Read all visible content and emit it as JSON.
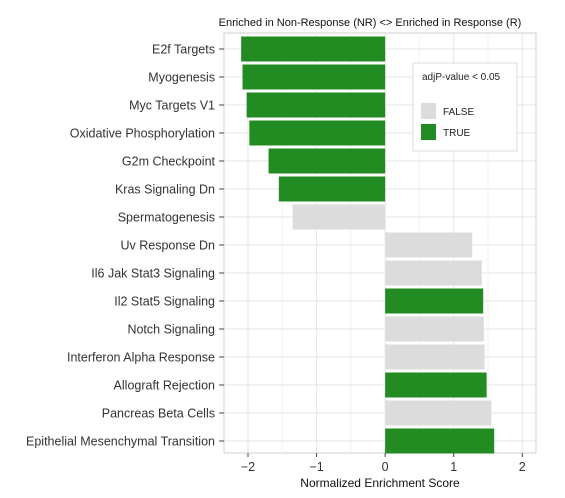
{
  "chart_data": {
    "type": "bar",
    "orientation": "horizontal",
    "title": "Enriched in Non-Response (NR) <> Enriched in Response (R)",
    "xlabel": "Normalized Enrichment Score",
    "ylabel": "",
    "xlim": [
      -2.35,
      2.2
    ],
    "xticks": [
      -2,
      -1,
      0,
      1,
      2
    ],
    "grid": true,
    "legend": {
      "title": "adjP-value < 0.05",
      "placement": "top-right",
      "entries": [
        {
          "label": "FALSE",
          "color": "#dcdcdc"
        },
        {
          "label": "TRUE",
          "color": "#228b22"
        }
      ]
    },
    "categories": [
      "E2f Targets",
      "Myogenesis",
      "Myc Targets V1",
      "Oxidative Phosphorylation",
      "G2m Checkpoint",
      "Kras Signaling Dn",
      "Spermatogenesis",
      "Uv Response Dn",
      "Il6 Jak Stat3 Signaling",
      "Il2 Stat5 Signaling",
      "Notch Signaling",
      "Interferon Alpha Response",
      "Allograft Rejection",
      "Pancreas Beta Cells",
      "Epithelial Mesenchymal Transition"
    ],
    "values": [
      -2.1,
      -2.08,
      -2.02,
      -1.98,
      -1.7,
      -1.55,
      -1.35,
      1.27,
      1.41,
      1.43,
      1.44,
      1.45,
      1.48,
      1.55,
      1.59
    ],
    "significant": [
      true,
      true,
      true,
      true,
      true,
      true,
      false,
      false,
      false,
      true,
      false,
      false,
      true,
      false,
      true
    ],
    "colors": {
      "true": "#228b22",
      "false": "#dcdcdc"
    }
  }
}
